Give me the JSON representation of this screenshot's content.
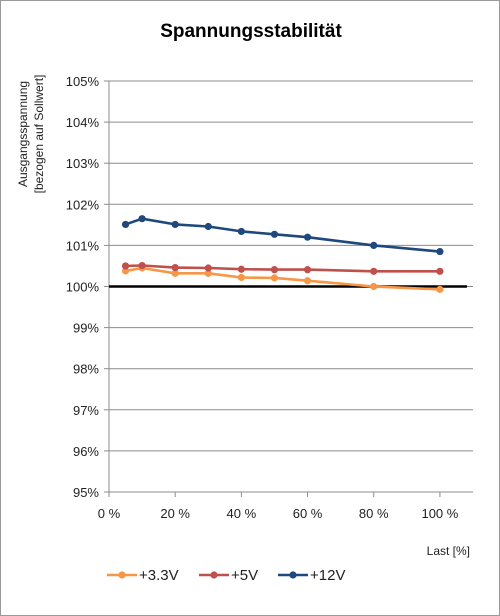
{
  "chart_data": {
    "type": "line",
    "title": "Spannungsstabilität",
    "ylabel_lines": [
      "Ausgangsspannung",
      "[bezogen auf Sollwert]"
    ],
    "xlabel": "Last [%]",
    "ylim": [
      95,
      105
    ],
    "xlim": [
      0,
      110
    ],
    "y_ticks": [
      95,
      96,
      97,
      98,
      99,
      100,
      101,
      102,
      103,
      104,
      105
    ],
    "y_tick_labels": [
      "95%",
      "96%",
      "97%",
      "98%",
      "99%",
      "100%",
      "101%",
      "102%",
      "103%",
      "104%",
      "105%"
    ],
    "x_ticks": [
      0,
      20,
      40,
      60,
      80,
      100
    ],
    "x_tick_labels": [
      "0 %",
      "20 %",
      "40 %",
      "60 %",
      "80 %",
      "100 %"
    ],
    "grid": "horizontal",
    "legend_position": "bottom",
    "reference_line": {
      "value": 100,
      "color": "#000000"
    },
    "series": [
      {
        "name": "+3.3V",
        "color": "#f79646",
        "x": [
          5,
          10,
          20,
          30,
          40,
          50,
          60,
          80,
          100
        ],
        "y": [
          100.38,
          100.45,
          100.32,
          100.32,
          100.22,
          100.21,
          100.14,
          100.0,
          99.93
        ]
      },
      {
        "name": "+5V",
        "color": "#c0504d",
        "x": [
          5,
          10,
          20,
          30,
          40,
          50,
          60,
          80,
          100
        ],
        "y": [
          100.5,
          100.51,
          100.46,
          100.45,
          100.42,
          100.41,
          100.41,
          100.37,
          100.37
        ]
      },
      {
        "name": "+12V",
        "color": "#1f497d",
        "x": [
          5,
          10,
          20,
          30,
          40,
          50,
          60,
          80,
          100
        ],
        "y": [
          101.51,
          101.65,
          101.51,
          101.46,
          101.34,
          101.27,
          101.2,
          101.0,
          100.85
        ]
      }
    ]
  }
}
